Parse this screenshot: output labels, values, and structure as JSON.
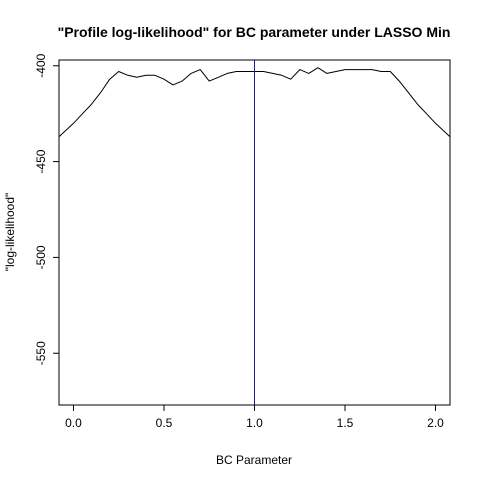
{
  "chart_data": {
    "type": "line",
    "title": "\"Profile log-likelihood\" for BC parameter under LASSO Min",
    "xlabel": "BC Parameter",
    "ylabel": "\"log-likelihood\"",
    "xlim": [
      -0.08,
      2.08
    ],
    "ylim": [
      -577,
      -397
    ],
    "x_ticks": [
      0.0,
      0.5,
      1.0,
      1.5,
      2.0
    ],
    "x_tick_labels": [
      "0.0",
      "0.5",
      "1.0",
      "1.5",
      "2.0"
    ],
    "y_ticks": [
      -550,
      -500,
      -450,
      -400
    ],
    "y_tick_labels": [
      "-550",
      "-500",
      "-450",
      "-400"
    ],
    "grid": false,
    "legend": "none",
    "series": [
      {
        "color": "#000000",
        "x": [
          -0.08,
          0.0,
          0.05,
          0.1,
          0.15,
          0.2,
          0.25,
          0.3,
          0.35,
          0.4,
          0.45,
          0.5,
          0.55,
          0.6,
          0.65,
          0.7,
          0.75,
          0.8,
          0.85,
          0.9,
          0.95,
          1.0,
          1.05,
          1.1,
          1.15,
          1.2,
          1.25,
          1.3,
          1.35,
          1.4,
          1.45,
          1.5,
          1.55,
          1.6,
          1.65,
          1.7,
          1.75,
          1.8,
          1.85,
          1.9,
          1.95,
          2.0,
          2.08
        ],
        "y": [
          -437,
          -430,
          -425,
          -420,
          -414,
          -407,
          -403,
          -405,
          -406,
          -405,
          -405,
          -407,
          -410,
          -408,
          -404,
          -402,
          -408,
          -406,
          -404,
          -403,
          -403,
          -403,
          -403,
          -404,
          -405,
          -407,
          -402,
          -404,
          -401,
          -404,
          -403,
          -402,
          -402,
          -402,
          -402,
          -403,
          -403,
          -408,
          -414,
          -420,
          -425,
          -430,
          -437
        ]
      }
    ],
    "vlines": [
      {
        "x": 1.0,
        "color": "#1a1aa0"
      }
    ]
  }
}
